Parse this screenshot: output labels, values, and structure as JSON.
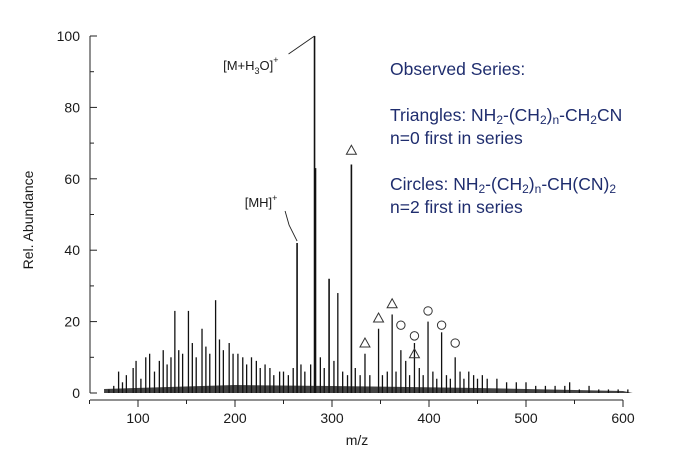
{
  "chart_data": {
    "type": "line",
    "xlabel": "m/z",
    "ylabel": "Rel. Abundance",
    "xlim": [
      45,
      620
    ],
    "ylim": [
      0,
      100
    ],
    "x_ticks": [
      100,
      200,
      300,
      400,
      500,
      600
    ],
    "y_ticks": [
      0,
      20,
      40,
      60,
      80,
      100
    ],
    "grid": false,
    "peaks": [
      {
        "x": 70,
        "y": 1
      },
      {
        "x": 75,
        "y": 2
      },
      {
        "x": 80,
        "y": 6
      },
      {
        "x": 84,
        "y": 3
      },
      {
        "x": 88,
        "y": 5
      },
      {
        "x": 95,
        "y": 7
      },
      {
        "x": 98,
        "y": 9
      },
      {
        "x": 103,
        "y": 4
      },
      {
        "x": 108,
        "y": 10
      },
      {
        "x": 112,
        "y": 11
      },
      {
        "x": 117,
        "y": 6
      },
      {
        "x": 122,
        "y": 9
      },
      {
        "x": 126,
        "y": 12
      },
      {
        "x": 130,
        "y": 8
      },
      {
        "x": 134,
        "y": 10
      },
      {
        "x": 138,
        "y": 23
      },
      {
        "x": 142,
        "y": 12
      },
      {
        "x": 146,
        "y": 11
      },
      {
        "x": 152,
        "y": 23
      },
      {
        "x": 156,
        "y": 14
      },
      {
        "x": 160,
        "y": 10
      },
      {
        "x": 166,
        "y": 18
      },
      {
        "x": 170,
        "y": 13
      },
      {
        "x": 174,
        "y": 11
      },
      {
        "x": 180,
        "y": 26
      },
      {
        "x": 184,
        "y": 15
      },
      {
        "x": 188,
        "y": 12
      },
      {
        "x": 194,
        "y": 14
      },
      {
        "x": 198,
        "y": 11
      },
      {
        "x": 203,
        "y": 11
      },
      {
        "x": 208,
        "y": 10
      },
      {
        "x": 212,
        "y": 8
      },
      {
        "x": 217,
        "y": 10
      },
      {
        "x": 222,
        "y": 9
      },
      {
        "x": 226,
        "y": 7
      },
      {
        "x": 231,
        "y": 8
      },
      {
        "x": 236,
        "y": 7
      },
      {
        "x": 240,
        "y": 5
      },
      {
        "x": 246,
        "y": 6
      },
      {
        "x": 250,
        "y": 6
      },
      {
        "x": 255,
        "y": 5
      },
      {
        "x": 260,
        "y": 7
      },
      {
        "x": 264,
        "y": 42
      },
      {
        "x": 268,
        "y": 8
      },
      {
        "x": 272,
        "y": 6
      },
      {
        "x": 278,
        "y": 8
      },
      {
        "x": 282,
        "y": 100
      },
      {
        "x": 283,
        "y": 63
      },
      {
        "x": 288,
        "y": 10
      },
      {
        "x": 292,
        "y": 7
      },
      {
        "x": 297,
        "y": 32
      },
      {
        "x": 302,
        "y": 9
      },
      {
        "x": 306,
        "y": 28
      },
      {
        "x": 311,
        "y": 6
      },
      {
        "x": 316,
        "y": 5
      },
      {
        "x": 320,
        "y": 64
      },
      {
        "x": 324,
        "y": 7
      },
      {
        "x": 329,
        "y": 5
      },
      {
        "x": 334,
        "y": 11
      },
      {
        "x": 339,
        "y": 5
      },
      {
        "x": 348,
        "y": 18
      },
      {
        "x": 352,
        "y": 5
      },
      {
        "x": 357,
        "y": 6
      },
      {
        "x": 362,
        "y": 22
      },
      {
        "x": 366,
        "y": 6
      },
      {
        "x": 371,
        "y": 12
      },
      {
        "x": 376,
        "y": 9
      },
      {
        "x": 380,
        "y": 5
      },
      {
        "x": 385,
        "y": 14
      },
      {
        "x": 390,
        "y": 7
      },
      {
        "x": 394,
        "y": 5
      },
      {
        "x": 399,
        "y": 20
      },
      {
        "x": 404,
        "y": 6
      },
      {
        "x": 408,
        "y": 4
      },
      {
        "x": 413,
        "y": 17
      },
      {
        "x": 418,
        "y": 5
      },
      {
        "x": 422,
        "y": 4
      },
      {
        "x": 427,
        "y": 10
      },
      {
        "x": 432,
        "y": 6
      },
      {
        "x": 436,
        "y": 4
      },
      {
        "x": 441,
        "y": 6
      },
      {
        "x": 446,
        "y": 5
      },
      {
        "x": 450,
        "y": 4
      },
      {
        "x": 455,
        "y": 5
      },
      {
        "x": 460,
        "y": 4
      },
      {
        "x": 470,
        "y": 4
      },
      {
        "x": 480,
        "y": 3
      },
      {
        "x": 490,
        "y": 3
      },
      {
        "x": 500,
        "y": 3
      },
      {
        "x": 510,
        "y": 2
      },
      {
        "x": 520,
        "y": 2
      },
      {
        "x": 530,
        "y": 2
      },
      {
        "x": 540,
        "y": 2
      },
      {
        "x": 545,
        "y": 3
      },
      {
        "x": 555,
        "y": 1
      },
      {
        "x": 565,
        "y": 2
      },
      {
        "x": 575,
        "y": 1
      },
      {
        "x": 585,
        "y": 1
      },
      {
        "x": 595,
        "y": 1
      },
      {
        "x": 605,
        "y": 1
      }
    ],
    "annotations": [
      {
        "text": "[MH]",
        "sup": "+",
        "x": 264,
        "y": 42
      },
      {
        "text": "[M+H",
        "sub": "3",
        "text2": "O]",
        "sup": "+",
        "x": 282,
        "y": 100
      }
    ],
    "triangles": [
      {
        "x": 320,
        "y": 68
      },
      {
        "x": 334,
        "y": 14
      },
      {
        "x": 348,
        "y": 21
      },
      {
        "x": 362,
        "y": 25
      },
      {
        "x": 385,
        "y": 11
      }
    ],
    "circles": [
      {
        "x": 371,
        "y": 19
      },
      {
        "x": 385,
        "y": 16
      },
      {
        "x": 399,
        "y": 23
      },
      {
        "x": 413,
        "y": 19
      },
      {
        "x": 427,
        "y": 14
      }
    ],
    "legend": {
      "title": "Observed Series:",
      "tri_label": "Triangles: NH",
      "tri_sub1": "2",
      "tri_mid1": "-(CH",
      "tri_sub2": "2",
      "tri_mid2": ")",
      "tri_sub3": "n",
      "tri_end": "-CH",
      "tri_sub4": "2",
      "tri_end2": "CN",
      "tri_note": "n=0 first in series",
      "circ_label": "Circles: NH",
      "circ_sub1": "2",
      "circ_mid1": "-(CH",
      "circ_sub2": "2",
      "circ_mid2": ")",
      "circ_sub3": "n",
      "circ_end": "-CH(CN)",
      "circ_sub4": "2",
      "circ_note": "n=2 first in series"
    }
  }
}
